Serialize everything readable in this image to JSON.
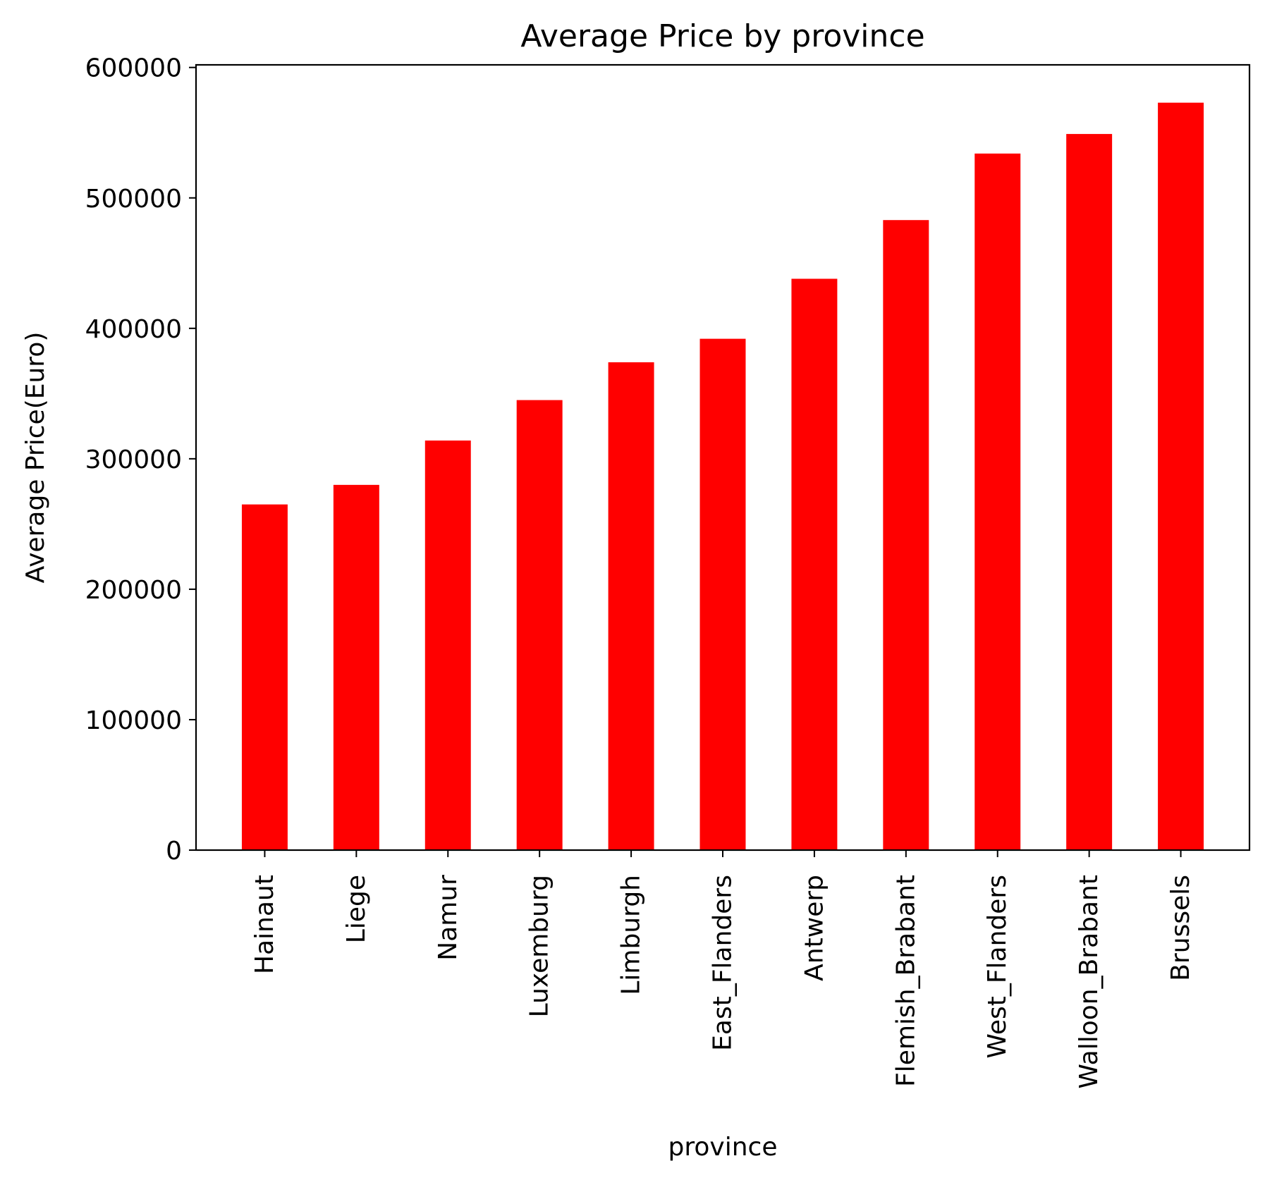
{
  "chart_data": {
    "type": "bar",
    "title": "Average Price by province",
    "xlabel": "province",
    "ylabel": "Average Price(Euro)",
    "categories": [
      "Hainaut",
      "Liege",
      "Namur",
      "Luxemburg",
      "Limburgh",
      "East_Flanders",
      "Antwerp",
      "Flemish_Brabant",
      "West_Flanders",
      "Walloon_Brabant",
      "Brussels"
    ],
    "values": [
      265000,
      280000,
      314000,
      345000,
      374000,
      392000,
      438000,
      483000,
      534000,
      549000,
      573000
    ],
    "ylim": [
      0,
      602000
    ],
    "yticks": [
      0,
      100000,
      200000,
      300000,
      400000,
      500000,
      600000
    ],
    "ytick_labels": [
      "0",
      "100000",
      "200000",
      "300000",
      "400000",
      "500000",
      "600000"
    ],
    "bar_color": "#ff0000",
    "grid": false,
    "legend": "none"
  }
}
